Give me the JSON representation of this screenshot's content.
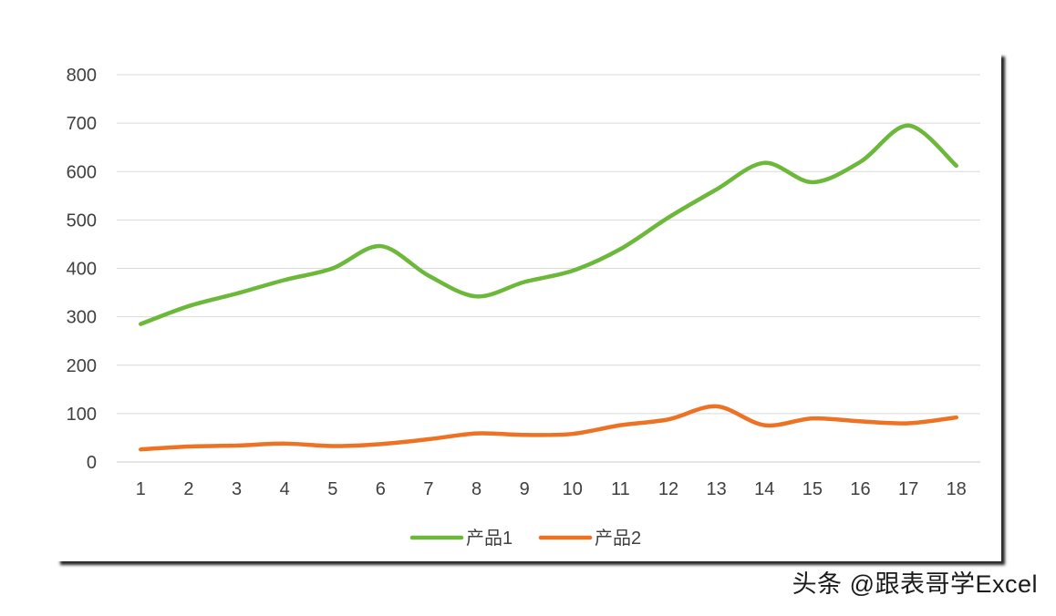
{
  "chart_data": {
    "type": "line",
    "title": "",
    "xlabel": "",
    "ylabel": "",
    "x": [
      "1",
      "2",
      "3",
      "4",
      "5",
      "6",
      "7",
      "8",
      "9",
      "10",
      "11",
      "12",
      "13",
      "14",
      "15",
      "16",
      "17",
      "18"
    ],
    "ylim": [
      0,
      800
    ],
    "yticks": [
      "0",
      "100",
      "200",
      "300",
      "400",
      "500",
      "600",
      "700",
      "800"
    ],
    "grid": true,
    "legend_position": "bottom",
    "smooth": true,
    "series": [
      {
        "name": "产品1",
        "color": "#6bb83a",
        "values": [
          285,
          322,
          348,
          376,
          400,
          446,
          385,
          342,
          372,
          395,
          440,
          505,
          563,
          618,
          578,
          620,
          695,
          612
        ]
      },
      {
        "name": "产品2",
        "color": "#ed7224",
        "values": [
          26,
          32,
          34,
          38,
          33,
          37,
          47,
          59,
          56,
          58,
          76,
          88,
          115,
          76,
          90,
          84,
          80,
          92
        ]
      }
    ]
  },
  "watermark": "头条 @跟表哥学Excel"
}
